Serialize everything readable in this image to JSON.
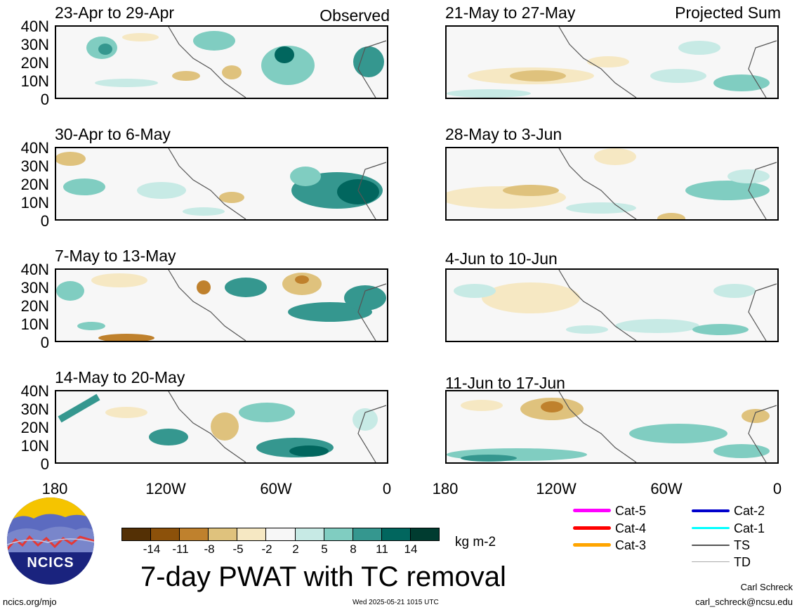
{
  "panels": [
    {
      "title": "23-Apr to 29-Apr",
      "corner": "Observed"
    },
    {
      "title": "21-May to 27-May",
      "corner": "Projected Sum"
    },
    {
      "title": "30-Apr to 6-May",
      "corner": ""
    },
    {
      "title": "28-May to 3-Jun",
      "corner": ""
    },
    {
      "title": "7-May to 13-May",
      "corner": ""
    },
    {
      "title": "4-Jun to 10-Jun",
      "corner": ""
    },
    {
      "title": "14-May to 20-May",
      "corner": ""
    },
    {
      "title": "11-Jun to 17-Jun",
      "corner": ""
    }
  ],
  "axes": {
    "y_ticks": [
      "40N",
      "30N",
      "20N",
      "10N",
      "0"
    ],
    "x_ticks": [
      "180",
      "120W",
      "60W",
      "0"
    ]
  },
  "colorbar": {
    "colors": [
      "#543005",
      "#8c510a",
      "#bf812d",
      "#dfc27d",
      "#f6e8c3",
      "#f7f7f7",
      "#c7eae5",
      "#80cdc1",
      "#35978f",
      "#01665e",
      "#003c30"
    ],
    "labels": [
      "-14",
      "-11",
      "-8",
      "-5",
      "-2",
      "2",
      "5",
      "8",
      "11",
      "14"
    ],
    "units": "kg m-2"
  },
  "legend": [
    {
      "label": "Cat-5",
      "color": "#ff00ff"
    },
    {
      "label": "Cat-4",
      "color": "#ff0000"
    },
    {
      "label": "Cat-3",
      "color": "#ffa500"
    },
    {
      "label": "Cat-2",
      "color": "#0000cc"
    },
    {
      "label": "Cat-1",
      "color": "#00ffff"
    },
    {
      "label": "TS",
      "color": "#555555"
    },
    {
      "label": "TD",
      "color": "#aaaaaa"
    }
  ],
  "title": "7-day PWAT with TC removal",
  "logo_text": "NCICS",
  "footer": {
    "url": "ncics.org/mjo",
    "timestamp": "Wed 2025-05-21 1015 UTC",
    "author": "Carl Schreck",
    "email": "carl_schreck@ncsu.edu"
  }
}
